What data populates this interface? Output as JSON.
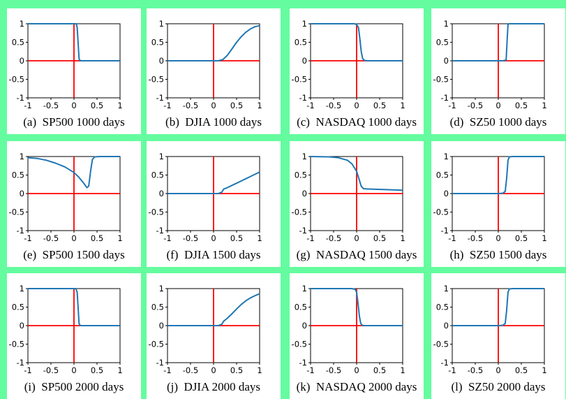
{
  "colors": {
    "background": "#64fc9f",
    "curve": "#1f77b4",
    "axes": "#ff0000"
  },
  "chart_data": [
    {
      "type": "line",
      "label": "(a)",
      "caption": "SP500 1000 days",
      "xlim": [
        -1,
        1
      ],
      "ylim": [
        -1,
        1
      ],
      "xticks": [
        "-1",
        "-0.5",
        "0",
        "0.5",
        "1"
      ],
      "yticks": [
        "1",
        "0.5",
        "0",
        "-0.5",
        "-1"
      ],
      "series": [
        {
          "x": [
            -1,
            0.0,
            0.05,
            0.07,
            0.09,
            0.11,
            0.14,
            0.2,
            0.5,
            1
          ],
          "y": [
            1,
            1,
            1,
            0.9,
            0.5,
            0.05,
            0.0,
            0,
            0,
            0
          ]
        }
      ]
    },
    {
      "type": "line",
      "label": "(b)",
      "caption": "DJIA 1000 days",
      "xlim": [
        -1,
        1
      ],
      "ylim": [
        -1,
        1
      ],
      "xticks": [
        "-1",
        "-0.5",
        "0",
        "0.5",
        "1"
      ],
      "yticks": [
        "1",
        "0.5",
        "0",
        "-0.5",
        "-1"
      ],
      "series": [
        {
          "x": [
            -1,
            0.1,
            0.2,
            0.3,
            0.4,
            0.5,
            0.6,
            0.7,
            0.8,
            0.9,
            1
          ],
          "y": [
            0,
            0,
            0.03,
            0.15,
            0.32,
            0.5,
            0.65,
            0.77,
            0.86,
            0.92,
            0.95
          ]
        }
      ]
    },
    {
      "type": "line",
      "label": "(c)",
      "caption": "NASDAQ 1000 days",
      "xlim": [
        -1,
        1
      ],
      "ylim": [
        -1,
        1
      ],
      "xticks": [
        "-1",
        "-0.5",
        "0",
        "0.5",
        "1"
      ],
      "yticks": [
        "1",
        "0.5",
        "0",
        "-0.5",
        "-1"
      ],
      "series": [
        {
          "x": [
            -1,
            -0.05,
            0.0,
            0.04,
            0.07,
            0.1,
            0.13,
            0.17,
            0.25,
            0.5,
            1
          ],
          "y": [
            1,
            1,
            0.98,
            0.9,
            0.6,
            0.25,
            0.06,
            0.01,
            0,
            0,
            0
          ]
        }
      ]
    },
    {
      "type": "line",
      "label": "(d)",
      "caption": "SZ50 1000 days",
      "xlim": [
        -1,
        1
      ],
      "ylim": [
        -1,
        1
      ],
      "xticks": [
        "-1",
        "-0.5",
        "0",
        "0.5",
        "1"
      ],
      "yticks": [
        "1",
        "0.5",
        "0",
        "-0.5",
        "-1"
      ],
      "series": [
        {
          "x": [
            -1,
            0.0,
            0.1,
            0.17,
            0.19,
            0.21,
            0.23,
            0.3,
            1
          ],
          "y": [
            0,
            0,
            0,
            0.02,
            0.5,
            0.98,
            1,
            1,
            1
          ]
        }
      ]
    },
    {
      "type": "line",
      "label": "(e)",
      "caption": "SP500 1500 days",
      "xlim": [
        -1,
        1
      ],
      "ylim": [
        -1,
        1
      ],
      "xticks": [
        "-1",
        "-0.5",
        "0",
        "0.5",
        "1"
      ],
      "yticks": [
        "1",
        "0.5",
        "0",
        "-0.5",
        "-1"
      ],
      "series": [
        {
          "x": [
            -1,
            -0.8,
            -0.6,
            -0.4,
            -0.2,
            0.0,
            0.1,
            0.2,
            0.28,
            0.32,
            0.36,
            0.4,
            0.45,
            0.55,
            1
          ],
          "y": [
            0.97,
            0.95,
            0.9,
            0.82,
            0.72,
            0.57,
            0.45,
            0.3,
            0.16,
            0.2,
            0.6,
            0.92,
            0.99,
            1,
            1
          ]
        }
      ]
    },
    {
      "type": "line",
      "label": "(f)",
      "caption": "DJIA 1500 days",
      "xlim": [
        -1,
        1
      ],
      "ylim": [
        -1,
        1
      ],
      "xticks": [
        "-1",
        "-0.5",
        "0",
        "0.5",
        "1"
      ],
      "yticks": [
        "1",
        "0.5",
        "0",
        "-0.5",
        "-1"
      ],
      "series": [
        {
          "x": [
            -1,
            0.1,
            0.18,
            0.22,
            0.3,
            0.4,
            0.5,
            0.6,
            0.7,
            0.8,
            0.9,
            1
          ],
          "y": [
            0,
            0,
            0.04,
            0.12,
            0.16,
            0.22,
            0.28,
            0.34,
            0.4,
            0.46,
            0.52,
            0.58
          ]
        }
      ]
    },
    {
      "type": "line",
      "label": "(g)",
      "caption": "NASDAQ 1500 days",
      "xlim": [
        -1,
        1
      ],
      "ylim": [
        -1,
        1
      ],
      "xticks": [
        "-1",
        "-0.5",
        "0",
        "0.5",
        "1"
      ],
      "yticks": [
        "1",
        "0.5",
        "0",
        "-0.5",
        "-1"
      ],
      "series": [
        {
          "x": [
            -1,
            -0.6,
            -0.4,
            -0.2,
            -0.1,
            0.0,
            0.05,
            0.1,
            0.15,
            0.3,
            0.6,
            1
          ],
          "y": [
            1,
            0.99,
            0.97,
            0.9,
            0.8,
            0.6,
            0.4,
            0.2,
            0.13,
            0.12,
            0.11,
            0.09
          ]
        }
      ]
    },
    {
      "type": "line",
      "label": "(h)",
      "caption": "SZ50 1500 days",
      "xlim": [
        -1,
        1
      ],
      "ylim": [
        -1,
        1
      ],
      "xticks": [
        "-1",
        "-0.5",
        "0",
        "0.5",
        "1"
      ],
      "yticks": [
        "1",
        "0.5",
        "0",
        "-0.5",
        "-1"
      ],
      "series": [
        {
          "x": [
            -1,
            0.0,
            0.1,
            0.15,
            0.18,
            0.21,
            0.24,
            0.3,
            1
          ],
          "y": [
            0,
            0,
            0.01,
            0.06,
            0.4,
            0.9,
            0.99,
            1,
            1
          ]
        }
      ]
    },
    {
      "type": "line",
      "label": "(i)",
      "caption": "SP500 2000 days",
      "xlim": [
        -1,
        1
      ],
      "ylim": [
        -1,
        1
      ],
      "xticks": [
        "-1",
        "-0.5",
        "0",
        "0.5",
        "1"
      ],
      "yticks": [
        "1",
        "0.5",
        "0",
        "-0.5",
        "-1"
      ],
      "series": [
        {
          "x": [
            -1,
            0.0,
            0.04,
            0.07,
            0.09,
            0.11,
            0.14,
            0.2,
            0.5,
            1
          ],
          "y": [
            1,
            1,
            1,
            0.9,
            0.5,
            0.05,
            0.0,
            0,
            0,
            0
          ]
        }
      ]
    },
    {
      "type": "line",
      "label": "(j)",
      "caption": "DJIA 2000 days",
      "xlim": [
        -1,
        1
      ],
      "ylim": [
        -1,
        1
      ],
      "xticks": [
        "-1",
        "-0.5",
        "0",
        "0.5",
        "1"
      ],
      "yticks": [
        "1",
        "0.5",
        "0",
        "-0.5",
        "-1"
      ],
      "series": [
        {
          "x": [
            -1,
            0.1,
            0.18,
            0.22,
            0.3,
            0.4,
            0.5,
            0.6,
            0.7,
            0.8,
            0.9,
            1
          ],
          "y": [
            0,
            0,
            0.04,
            0.12,
            0.2,
            0.32,
            0.45,
            0.57,
            0.67,
            0.75,
            0.81,
            0.86
          ]
        }
      ]
    },
    {
      "type": "line",
      "label": "(k)",
      "caption": "NASDAQ 2000 days",
      "xlim": [
        -1,
        1
      ],
      "ylim": [
        -1,
        1
      ],
      "xticks": [
        "-1",
        "-0.5",
        "0",
        "0.5",
        "1"
      ],
      "yticks": [
        "1",
        "0.5",
        "0",
        "-0.5",
        "-1"
      ],
      "series": [
        {
          "x": [
            -1,
            -0.1,
            -0.03,
            0.0,
            0.03,
            0.06,
            0.09,
            0.12,
            0.18,
            0.5,
            1
          ],
          "y": [
            1,
            1,
            0.98,
            0.9,
            0.6,
            0.25,
            0.06,
            0.01,
            0,
            0,
            0
          ]
        }
      ]
    },
    {
      "type": "line",
      "label": "(l)",
      "caption": "SZ50 2000 days",
      "xlim": [
        -1,
        1
      ],
      "ylim": [
        -1,
        1
      ],
      "xticks": [
        "-1",
        "-0.5",
        "0",
        "0.5",
        "1"
      ],
      "yticks": [
        "1",
        "0.5",
        "0",
        "-0.5",
        "-1"
      ],
      "series": [
        {
          "x": [
            -1,
            0.0,
            0.1,
            0.15,
            0.18,
            0.21,
            0.24,
            0.3,
            1
          ],
          "y": [
            0,
            0,
            0.01,
            0.06,
            0.4,
            0.9,
            0.99,
            1,
            1
          ]
        }
      ]
    }
  ]
}
